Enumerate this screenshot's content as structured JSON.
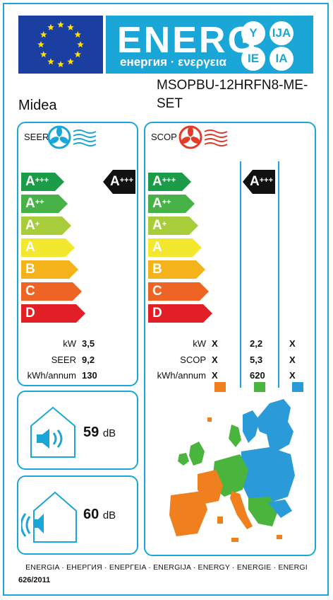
{
  "header": {
    "energy_word": "ENERG",
    "subtitle": "енергия · ενεργεια",
    "lang_badges": [
      "Y",
      "IJA",
      "IE",
      "IA"
    ]
  },
  "supplier": "Midea",
  "model": "MSOPBU-12HRFN8-ME-SET",
  "cooling": {
    "title": "SEER",
    "classes": [
      "A+++",
      "A++",
      "A+",
      "A",
      "B",
      "C",
      "D"
    ],
    "class_colors": [
      "#1c9b48",
      "#47b247",
      "#a7cd3b",
      "#f4e82e",
      "#f4b31b",
      "#ee6424",
      "#e21f26"
    ],
    "rated_class": "A+++",
    "rows": [
      {
        "label": "kW",
        "value": "3,5"
      },
      {
        "label": "SEER",
        "value": "9,2"
      },
      {
        "label": "kWh/annum",
        "value": "130"
      }
    ]
  },
  "heating": {
    "title": "SCOP",
    "classes": [
      "A+++",
      "A++",
      "A+",
      "A",
      "B",
      "C",
      "D"
    ],
    "rated_class": "A+++",
    "rows": [
      {
        "label": "kW",
        "values": [
          "X",
          "2,2",
          "X"
        ]
      },
      {
        "label": "SCOP",
        "values": [
          "X",
          "5,3",
          "X"
        ]
      },
      {
        "label": "kWh/annum",
        "values": [
          "X",
          "620",
          "X"
        ]
      }
    ],
    "zone_colors": [
      "#f07f1d",
      "#4ab53c",
      "#2b9ad8"
    ]
  },
  "noise_indoor": {
    "value": "59",
    "unit": "dB"
  },
  "noise_outdoor": {
    "value": "60",
    "unit": "dB"
  },
  "footer_text": "ENERGIA · ЕНЕРГИЯ · ΕΝΕΡΓΕΙΑ · ENERGIJA · ENERGY · ENERGIE · ENERGI",
  "regulation": "626/2011"
}
